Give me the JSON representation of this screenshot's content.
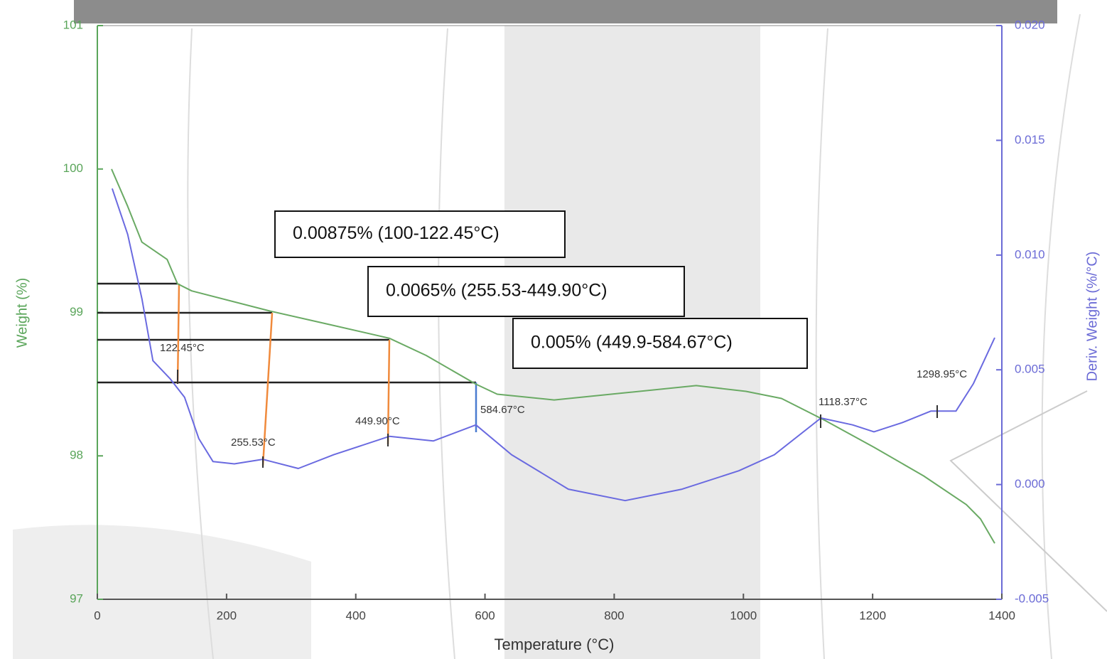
{
  "chart_data": {
    "type": "line",
    "x_label": "Temperature (°C)",
    "y_label": "Weight (%)",
    "y2_label": "Deriv. Weight (%/°C)",
    "xlim": [
      0,
      1400
    ],
    "xticks": [
      0,
      200,
      400,
      600,
      800,
      1000,
      1200,
      1400
    ],
    "ylim": [
      97,
      101
    ],
    "yticks": [
      97,
      98,
      99,
      100,
      101
    ],
    "y2lim": [
      -0.005,
      0.02
    ],
    "y2ticks": [
      {
        "value": -0.005,
        "label": "-0.005"
      },
      {
        "value": 0,
        "label": "0.000"
      },
      {
        "value": 0.005,
        "label": "0.005"
      },
      {
        "value": 0.01,
        "label": "0.010"
      },
      {
        "value": 0.015,
        "label": "0.015"
      },
      {
        "value": 0.02,
        "label": "0.020"
      }
    ],
    "series": [
      {
        "color": "#6aaa64",
        "axis": "y",
        "x": [
          22,
          47,
          69,
          108,
          124,
          146,
          267,
          355,
          452,
          509,
          586,
          619,
          707,
          817,
          927,
          1004,
          1059,
          1125,
          1202,
          1279,
          1345,
          1367,
          1389
        ],
        "values": [
          100.0,
          99.74,
          99.49,
          99.37,
          99.2,
          99.15,
          99.01,
          98.92,
          98.82,
          98.7,
          98.5,
          98.43,
          98.39,
          98.44,
          98.49,
          98.45,
          98.4,
          98.25,
          98.06,
          97.86,
          97.66,
          97.56,
          97.39
        ]
      },
      {
        "color": "#6a6ae0",
        "axis": "y2",
        "x": [
          23,
          47,
          69,
          86,
          113,
          135,
          157,
          179,
          212,
          256,
          311,
          366,
          452,
          520,
          586,
          641,
          729,
          817,
          905,
          993,
          1048,
          1120,
          1169,
          1202,
          1246,
          1290,
          1329,
          1356,
          1389
        ],
        "values": [
          0.0129,
          0.0109,
          0.0081,
          0.0054,
          0.0046,
          0.0038,
          0.002,
          0.001,
          0.0009,
          0.0011,
          0.0007,
          0.0013,
          0.0021,
          0.0019,
          0.0026,
          0.0013,
          -0.0002,
          -0.0007,
          -0.0002,
          0.0006,
          0.0013,
          0.0029,
          0.0026,
          0.0023,
          0.0027,
          0.0032,
          0.0032,
          0.0044,
          0.0064
        ]
      }
    ],
    "annotations": {
      "boxes": [
        "0.00875% (100-122.45°C)",
        "0.0065% (255.53-449.90°C)",
        "0.005% (449.9-584.67°C)"
      ],
      "peaks": [
        "122.45°C",
        "255.53°C",
        "449.90°C",
        "584.67°C",
        "1118.37°C",
        "1298.95°C"
      ]
    }
  }
}
